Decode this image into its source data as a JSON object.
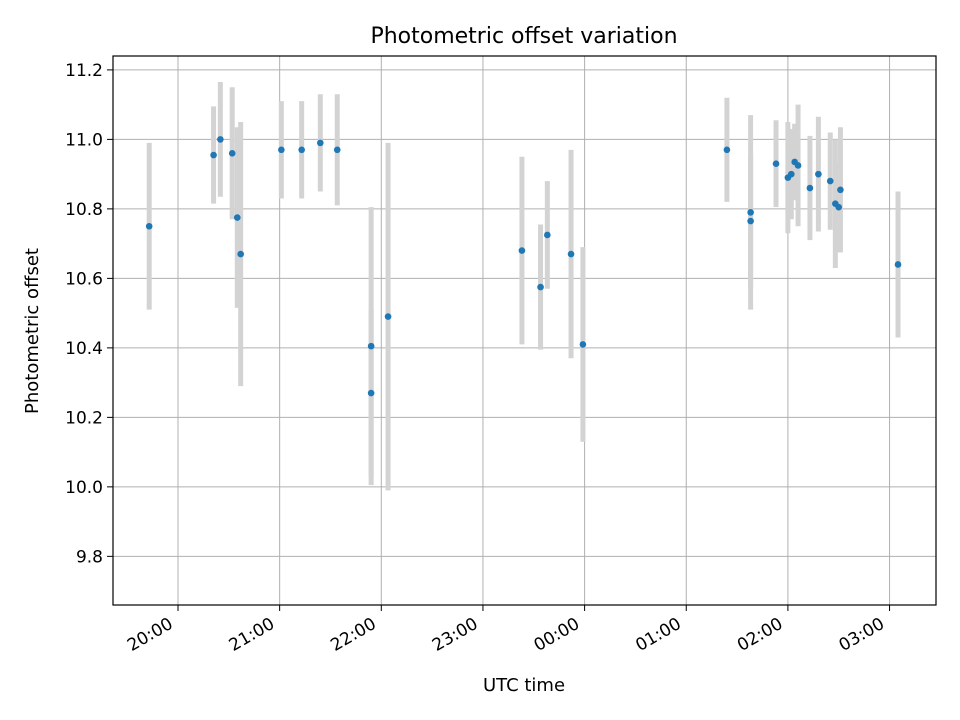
{
  "chart_data": {
    "type": "scatter",
    "title": "Photometric offset variation",
    "xlabel": "UTC time",
    "ylabel": "Photometric offset",
    "x_tick_labels": [
      "20:00",
      "21:00",
      "22:00",
      "23:00",
      "00:00",
      "01:00",
      "02:00",
      "03:00"
    ],
    "y_tick_labels": [
      "9.8",
      "10.0",
      "10.2",
      "10.4",
      "10.6",
      "10.8",
      "11.0",
      "11.2"
    ],
    "xlim": [
      "19:22",
      "03:30 (+1 day)"
    ],
    "ylim": [
      9.66,
      11.24
    ],
    "grid": true,
    "colors": {
      "points": "#1f77b4",
      "errorbars": "#d3d3d3",
      "grid": "#b0b0b0"
    },
    "points": [
      {
        "t": "19:43",
        "y": 10.75,
        "err": 0.24
      },
      {
        "t": "20:21",
        "y": 10.955,
        "err": 0.14
      },
      {
        "t": "20:25",
        "y": 11.0,
        "err": 0.165
      },
      {
        "t": "20:32",
        "y": 10.96,
        "err": 0.19
      },
      {
        "t": "20:35",
        "y": 10.775,
        "err": 0.26
      },
      {
        "t": "20:37",
        "y": 10.67,
        "err": 0.38
      },
      {
        "t": "21:01",
        "y": 10.97,
        "err": 0.14
      },
      {
        "t": "21:13",
        "y": 10.97,
        "err": 0.14
      },
      {
        "t": "21:24",
        "y": 10.99,
        "err": 0.14
      },
      {
        "t": "21:34",
        "y": 10.97,
        "err": 0.16
      },
      {
        "t": "21:54",
        "y": 10.405,
        "err": 0.4
      },
      {
        "t": "21:54",
        "y": 10.27,
        "err": 0.24
      },
      {
        "t": "22:04",
        "y": 10.49,
        "err": 0.5
      },
      {
        "t": "23:23",
        "y": 10.68,
        "err": 0.27
      },
      {
        "t": "23:34",
        "y": 10.575,
        "err": 0.18
      },
      {
        "t": "23:38",
        "y": 10.725,
        "err": 0.155
      },
      {
        "t": "23:52",
        "y": 10.67,
        "err": 0.3
      },
      {
        "t": "23:59",
        "y": 10.41,
        "err": 0.28
      },
      {
        "t": "01:24",
        "y": 10.97,
        "err": 0.15
      },
      {
        "t": "01:38",
        "y": 10.79,
        "err": 0.28
      },
      {
        "t": "01:38",
        "y": 10.765,
        "err": 0.19
      },
      {
        "t": "01:53",
        "y": 10.93,
        "err": 0.125
      },
      {
        "t": "02:00",
        "y": 10.89,
        "err": 0.16
      },
      {
        "t": "02:02",
        "y": 10.9,
        "err": 0.13
      },
      {
        "t": "02:04",
        "y": 10.935,
        "err": 0.11
      },
      {
        "t": "02:06",
        "y": 10.925,
        "err": 0.175
      },
      {
        "t": "02:13",
        "y": 10.86,
        "err": 0.15
      },
      {
        "t": "02:18",
        "y": 10.9,
        "err": 0.165
      },
      {
        "t": "02:25",
        "y": 10.88,
        "err": 0.14
      },
      {
        "t": "02:28",
        "y": 10.815,
        "err": 0.185
      },
      {
        "t": "02:30",
        "y": 10.805,
        "err": 0.13
      },
      {
        "t": "02:31",
        "y": 10.855,
        "err": 0.18
      },
      {
        "t": "03:05",
        "y": 10.64,
        "err": 0.21
      }
    ]
  }
}
